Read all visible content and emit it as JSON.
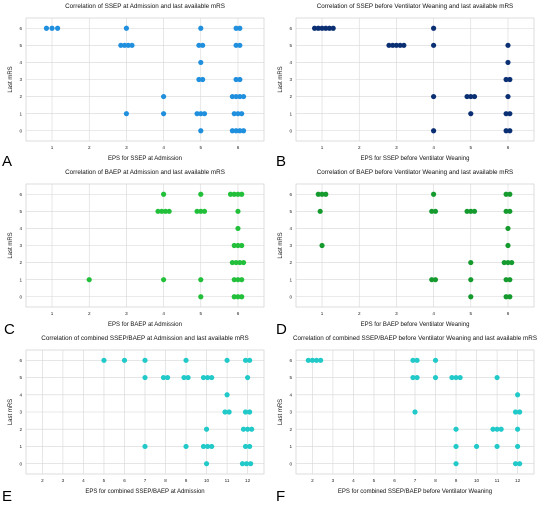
{
  "chart_data": [
    {
      "type": "scatter",
      "panel": "A",
      "title": "Correlation of SSEP at Admission and last available mRS",
      "xlabel": "EPS for SSEP at Admission",
      "ylabel": "Last mRS",
      "xlim": [
        0.3,
        6.7
      ],
      "ylim": [
        -0.6,
        6.6
      ],
      "xticks": [
        "1",
        "2",
        "3",
        "4",
        "5",
        "6"
      ],
      "yticks": [
        "0",
        "1",
        "2",
        "3",
        "4",
        "5",
        "6"
      ],
      "grid": true,
      "color": "#1f8fde",
      "points": [
        [
          0.85,
          6
        ],
        [
          1.0,
          6
        ],
        [
          1.15,
          6
        ],
        [
          3.0,
          6
        ],
        [
          2.85,
          5
        ],
        [
          2.95,
          5
        ],
        [
          3.05,
          5
        ],
        [
          3.15,
          5
        ],
        [
          3.0,
          1
        ],
        [
          4.0,
          2
        ],
        [
          4.0,
          1
        ],
        [
          5.0,
          6
        ],
        [
          4.95,
          5
        ],
        [
          5.05,
          5
        ],
        [
          5.0,
          4
        ],
        [
          4.95,
          3
        ],
        [
          5.05,
          3
        ],
        [
          4.9,
          1
        ],
        [
          5.0,
          1
        ],
        [
          5.1,
          1
        ],
        [
          5.0,
          0
        ],
        [
          5.95,
          6
        ],
        [
          6.05,
          6
        ],
        [
          5.95,
          5
        ],
        [
          6.05,
          5
        ],
        [
          5.95,
          3
        ],
        [
          6.05,
          3
        ],
        [
          5.85,
          2
        ],
        [
          5.95,
          2
        ],
        [
          6.05,
          2
        ],
        [
          6.15,
          2
        ],
        [
          5.9,
          1
        ],
        [
          6.0,
          1
        ],
        [
          6.1,
          1
        ],
        [
          5.85,
          0
        ],
        [
          5.95,
          0
        ],
        [
          6.05,
          0
        ],
        [
          6.15,
          0
        ]
      ]
    },
    {
      "type": "scatter",
      "panel": "B",
      "title": "Correlation of SSEP before Ventilator Weaning and last available mRS",
      "xlabel": "EPS for SSEP before Ventilator Weaning",
      "ylabel": "Last mRS",
      "xlim": [
        0.3,
        6.7
      ],
      "ylim": [
        -0.6,
        6.6
      ],
      "xticks": [
        "1",
        "2",
        "3",
        "4",
        "5",
        "6"
      ],
      "yticks": [
        "0",
        "1",
        "2",
        "3",
        "4",
        "5",
        "6"
      ],
      "grid": true,
      "color": "#0b2f73",
      "points": [
        [
          0.8,
          6
        ],
        [
          0.9,
          6
        ],
        [
          1.0,
          6
        ],
        [
          1.1,
          6
        ],
        [
          1.2,
          6
        ],
        [
          1.3,
          6
        ],
        [
          2.8,
          5
        ],
        [
          2.9,
          5
        ],
        [
          3.0,
          5
        ],
        [
          3.1,
          5
        ],
        [
          3.2,
          5
        ],
        [
          4.0,
          6
        ],
        [
          4.0,
          5
        ],
        [
          4.0,
          2
        ],
        [
          4.0,
          0
        ],
        [
          4.9,
          2
        ],
        [
          5.0,
          2
        ],
        [
          5.1,
          2
        ],
        [
          5.0,
          1
        ],
        [
          6.0,
          5
        ],
        [
          6.0,
          4
        ],
        [
          5.95,
          3
        ],
        [
          6.05,
          3
        ],
        [
          6.0,
          2
        ],
        [
          5.95,
          1
        ],
        [
          6.05,
          1
        ],
        [
          5.95,
          0
        ],
        [
          6.05,
          0
        ]
      ]
    },
    {
      "type": "scatter",
      "panel": "C",
      "title": "Correlation of BAEP at Admission and last available mRS",
      "xlabel": "EPS for BAEP at Admission",
      "ylabel": "Last mRS",
      "xlim": [
        0.3,
        6.7
      ],
      "ylim": [
        -0.6,
        6.6
      ],
      "xticks": [
        "1",
        "2",
        "3",
        "4",
        "5",
        "6"
      ],
      "yticks": [
        "0",
        "1",
        "2",
        "3",
        "4",
        "5",
        "6"
      ],
      "grid": true,
      "color": "#22c03a",
      "points": [
        [
          2.0,
          1
        ],
        [
          4.0,
          6
        ],
        [
          3.85,
          5
        ],
        [
          3.95,
          5
        ],
        [
          4.05,
          5
        ],
        [
          4.15,
          5
        ],
        [
          4.0,
          1
        ],
        [
          5.0,
          6
        ],
        [
          4.9,
          5
        ],
        [
          5.0,
          5
        ],
        [
          5.1,
          5
        ],
        [
          5.0,
          1
        ],
        [
          5.0,
          0
        ],
        [
          5.8,
          6
        ],
        [
          5.9,
          6
        ],
        [
          6.0,
          6
        ],
        [
          6.1,
          6
        ],
        [
          6.0,
          5
        ],
        [
          6.0,
          4
        ],
        [
          5.9,
          3
        ],
        [
          6.0,
          3
        ],
        [
          6.1,
          3
        ],
        [
          5.85,
          2
        ],
        [
          5.95,
          2
        ],
        [
          6.05,
          2
        ],
        [
          6.15,
          2
        ],
        [
          5.9,
          1
        ],
        [
          6.0,
          1
        ],
        [
          6.1,
          1
        ],
        [
          5.9,
          0
        ],
        [
          6.0,
          0
        ],
        [
          6.1,
          0
        ]
      ]
    },
    {
      "type": "scatter",
      "panel": "D",
      "title": "Correlation of BAEP before Ventilator Weaning and last available mRS",
      "xlabel": "EPS for BAEP before Ventilator Weaning",
      "ylabel": "Last mRS",
      "xlim": [
        0.3,
        6.7
      ],
      "ylim": [
        -0.6,
        6.6
      ],
      "xticks": [
        "1",
        "2",
        "3",
        "4",
        "5",
        "6"
      ],
      "yticks": [
        "0",
        "1",
        "2",
        "3",
        "4",
        "5",
        "6"
      ],
      "grid": true,
      "color": "#159a2e",
      "points": [
        [
          0.9,
          6
        ],
        [
          1.0,
          6
        ],
        [
          1.1,
          6
        ],
        [
          0.95,
          5
        ],
        [
          1.0,
          3
        ],
        [
          4.0,
          6
        ],
        [
          3.95,
          5
        ],
        [
          4.05,
          5
        ],
        [
          3.95,
          1
        ],
        [
          4.05,
          1
        ],
        [
          4.9,
          5
        ],
        [
          5.0,
          5
        ],
        [
          5.1,
          5
        ],
        [
          5.0,
          2
        ],
        [
          5.0,
          1
        ],
        [
          5.0,
          0
        ],
        [
          5.95,
          6
        ],
        [
          6.05,
          6
        ],
        [
          5.95,
          5
        ],
        [
          6.05,
          5
        ],
        [
          6.0,
          4
        ],
        [
          6.0,
          3
        ],
        [
          5.9,
          2
        ],
        [
          6.0,
          2
        ],
        [
          6.1,
          2
        ],
        [
          5.95,
          1
        ],
        [
          6.05,
          1
        ],
        [
          5.95,
          0
        ],
        [
          6.05,
          0
        ]
      ]
    },
    {
      "type": "scatter",
      "panel": "E",
      "title": "Correlation of combined SSEP/BAEP at Admission and last available mRS",
      "xlabel": "EPS for combined SSEP/BAEP at Admission",
      "ylabel": "Last mRS",
      "xlim": [
        1.2,
        12.8
      ],
      "ylim": [
        -0.6,
        6.6
      ],
      "xticks": [
        "2",
        "3",
        "4",
        "5",
        "6",
        "7",
        "8",
        "9",
        "10",
        "11",
        "12"
      ],
      "yticks": [
        "0",
        "1",
        "2",
        "3",
        "4",
        "5",
        "6"
      ],
      "grid": true,
      "color": "#22c9c9",
      "points": [
        [
          5.0,
          6
        ],
        [
          6.0,
          6
        ],
        [
          7.0,
          6
        ],
        [
          9.0,
          6
        ],
        [
          11.0,
          6
        ],
        [
          11.9,
          6
        ],
        [
          12.1,
          6
        ],
        [
          7.0,
          5
        ],
        [
          7.9,
          5
        ],
        [
          8.1,
          5
        ],
        [
          8.9,
          5
        ],
        [
          9.1,
          5
        ],
        [
          9.85,
          5
        ],
        [
          10.05,
          5
        ],
        [
          10.25,
          5
        ],
        [
          12.0,
          5
        ],
        [
          11.0,
          4
        ],
        [
          10.9,
          3
        ],
        [
          11.1,
          3
        ],
        [
          11.9,
          3
        ],
        [
          12.1,
          3
        ],
        [
          10.0,
          2
        ],
        [
          11.8,
          2
        ],
        [
          12.0,
          2
        ],
        [
          12.2,
          2
        ],
        [
          7.0,
          1
        ],
        [
          9.0,
          1
        ],
        [
          9.85,
          1
        ],
        [
          10.05,
          1
        ],
        [
          10.25,
          1
        ],
        [
          11.9,
          1
        ],
        [
          12.1,
          1
        ],
        [
          10.0,
          0
        ],
        [
          11.75,
          0
        ],
        [
          11.95,
          0
        ],
        [
          12.15,
          0
        ]
      ]
    },
    {
      "type": "scatter",
      "panel": "F",
      "title": "Correlation of combined SSEP/BAEP before Ventilator Weaning and last available mRS",
      "xlabel": "EPS for combined SSEP/BAEP before Ventilator Weaning",
      "ylabel": "Last mRS",
      "xlim": [
        1.2,
        12.8
      ],
      "ylim": [
        -0.6,
        6.6
      ],
      "xticks": [
        "2",
        "3",
        "4",
        "5",
        "6",
        "7",
        "8",
        "9",
        "10",
        "11",
        "12"
      ],
      "yticks": [
        "0",
        "1",
        "2",
        "3",
        "4",
        "5",
        "6"
      ],
      "grid": true,
      "color": "#22c9c9",
      "points": [
        [
          1.8,
          6
        ],
        [
          2.0,
          6
        ],
        [
          2.2,
          6
        ],
        [
          2.4,
          6
        ],
        [
          6.9,
          6
        ],
        [
          7.1,
          6
        ],
        [
          8.0,
          6
        ],
        [
          6.9,
          5
        ],
        [
          7.1,
          5
        ],
        [
          8.0,
          5
        ],
        [
          8.8,
          5
        ],
        [
          9.0,
          5
        ],
        [
          9.2,
          5
        ],
        [
          11.0,
          5
        ],
        [
          7.0,
          3
        ],
        [
          12.0,
          4
        ],
        [
          11.9,
          3
        ],
        [
          12.1,
          3
        ],
        [
          9.0,
          2
        ],
        [
          10.8,
          2
        ],
        [
          11.0,
          2
        ],
        [
          11.2,
          2
        ],
        [
          12.0,
          2
        ],
        [
          9.0,
          1
        ],
        [
          10.0,
          1
        ],
        [
          11.0,
          1
        ],
        [
          12.0,
          1
        ],
        [
          9.0,
          0
        ],
        [
          11.9,
          0
        ],
        [
          12.1,
          0
        ]
      ]
    }
  ]
}
